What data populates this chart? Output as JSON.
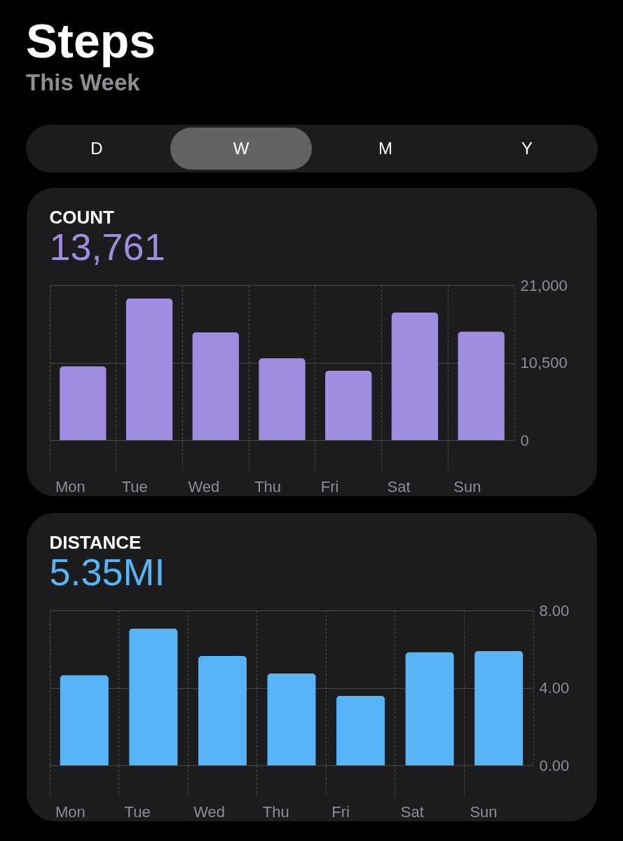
{
  "chart_data": [
    {
      "type": "other",
      "title": "Steps",
      "subtitle": "This Week",
      "categories": [
        "D",
        "W",
        "M",
        "Y"
      ]
    },
    {
      "type": "bar",
      "title": "COUNT",
      "subtitle": "13,761",
      "categories": [
        "Mon",
        "Tue",
        "Wed",
        "Thu",
        "Fri",
        "Sat",
        "Sun"
      ],
      "series": [
        {
          "color": "#a08de0",
          "values": [
            10000,
            19200,
            14600,
            11100,
            9400,
            17300,
            14700
          ]
        }
      ],
      "ylim": [
        0,
        21000
      ],
      "yticks": [
        {
          "value": 0,
          "label": "0"
        },
        {
          "value": 10500,
          "label": "10,500"
        },
        {
          "value": 21000,
          "label": "21,000"
        }
      ],
      "grid": true,
      "legend": false
    },
    {
      "type": "bar",
      "title": "DISTANCE",
      "subtitle": "5.35MI",
      "categories": [
        "Mon",
        "Tue",
        "Wed",
        "Thu",
        "Fri",
        "Sat",
        "Sun"
      ],
      "series": [
        {
          "color": "#56b4f7",
          "values": [
            4.65,
            7.06,
            5.65,
            4.74,
            3.58,
            5.84,
            5.9
          ]
        }
      ],
      "ylim": [
        0,
        8
      ],
      "yticks": [
        {
          "value": 0,
          "label": "0.00"
        },
        {
          "value": 4,
          "label": "4.00"
        },
        {
          "value": 8,
          "label": "8.00"
        }
      ],
      "grid": true,
      "legend": false
    }
  ]
}
